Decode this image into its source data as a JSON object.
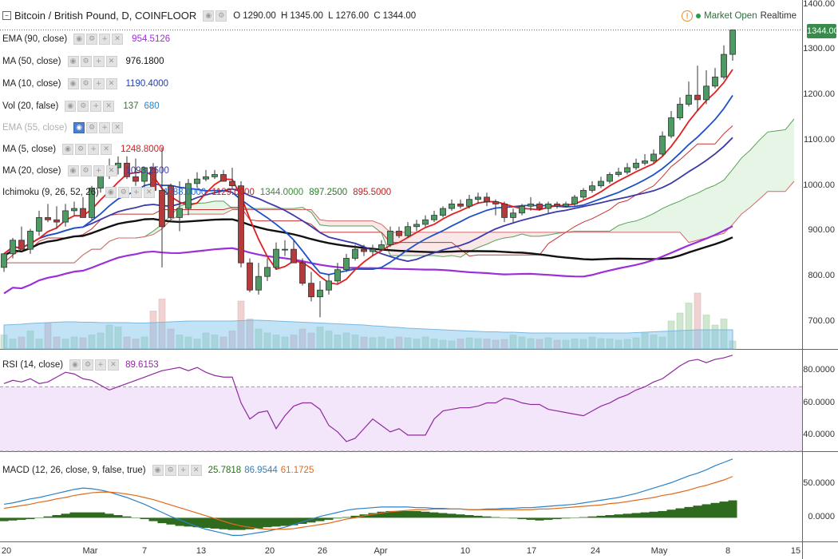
{
  "header": {
    "symbol_title": "Bitcoin / British Pound, D, COINFLOOR",
    "ohlc": {
      "o_label": "O",
      "o": "1290.00",
      "h_label": "H",
      "h": "1345.00",
      "l_label": "L",
      "l": "1276.00",
      "c_label": "C",
      "c": "1344.00"
    },
    "market_status": "Market Open",
    "feed": "Realtime",
    "last_price_tag": "1344.00"
  },
  "indicators": [
    {
      "label": "EMA (90, close)",
      "values": [
        "954.5126"
      ],
      "colors": [
        "#9b30d8"
      ],
      "faded": false
    },
    {
      "label": "MA (50, close)",
      "values": [
        "976.1800"
      ],
      "colors": [
        "#111111"
      ],
      "faded": false
    },
    {
      "label": "MA (10, close)",
      "values": [
        "1190.4000"
      ],
      "colors": [
        "#1e40b0"
      ],
      "faded": false
    },
    {
      "label": "Vol (20, false)",
      "values": [
        "137",
        "680"
      ],
      "colors": [
        "#3a6e3a",
        "#2a82c8"
      ],
      "faded": false
    },
    {
      "label": "EMA (55, close)",
      "values": [],
      "colors": [],
      "faded": true
    },
    {
      "label": "MA (5, close)",
      "values": [
        "1248.8000"
      ],
      "colors": [
        "#d42020"
      ],
      "faded": false
    },
    {
      "label": "MA (20, close)",
      "values": [
        "1093.2500"
      ],
      "colors": [
        "#3a3aa8"
      ],
      "faded": false
    },
    {
      "label": "Ichimoku (9, 26, 52, 26)",
      "values": [
        "1188.0000",
        "1129.0000",
        "1344.0000",
        "897.2500",
        "895.5000"
      ],
      "colors": [
        "#2a6ad8",
        "#c02020",
        "#3a8a3a",
        "#2a7a2a",
        "#c02020"
      ],
      "faded": false
    }
  ],
  "rsi_panel": {
    "label": "RSI (14, close)",
    "value": "89.6153",
    "value_color": "#8e2a9e",
    "ticks": [
      "80.0000",
      "60.0000",
      "40.0000"
    ]
  },
  "macd_panel": {
    "label": "MACD (12, 26, close, 9, false, true)",
    "values": [
      "25.7818",
      "86.9544",
      "61.1725"
    ],
    "value_colors": [
      "#2a6e1a",
      "#2a82c8",
      "#e06a1a"
    ],
    "ticks": [
      "50.0000",
      "0.0000"
    ]
  },
  "price_axis": [
    "1400.00",
    "1300.00",
    "1200.00",
    "1100.00",
    "1000.00",
    "900.00",
    "800.00",
    "700.00"
  ],
  "time_axis": [
    "20",
    "Mar",
    "7",
    "13",
    "20",
    "26",
    "Apr",
    "10",
    "17",
    "24",
    "May",
    "8",
    "15"
  ],
  "chart_data": {
    "type": "candlestick",
    "title": "Bitcoin / British Pound, D, COINFLOOR",
    "ylim": [
      640,
      1410
    ],
    "candles": {
      "open": [
        820,
        850,
        880,
        860,
        900,
        930,
        925,
        920,
        945,
        950,
        930,
        995,
        1025,
        1040,
        1050,
        1020,
        1010,
        1040,
        990,
        1000,
        930,
        950,
        1005,
        1015,
        1020,
        1025,
        1010,
        1000,
        830,
        770,
        800,
        820,
        860,
        860,
        830,
        785,
        755,
        770,
        790,
        815,
        840,
        860,
        855,
        860,
        870,
        900,
        890,
        910,
        915,
        925,
        935,
        950,
        960,
        955,
        970,
        975,
        965,
        960,
        930,
        940,
        955,
        960,
        950,
        960,
        955,
        960,
        975,
        990,
        1000,
        1010,
        1025,
        1030,
        1040,
        1050,
        1055,
        1070,
        1110,
        1150,
        1180,
        1200,
        1190,
        1220,
        1240,
        1290
      ],
      "high": [
        850,
        885,
        910,
        905,
        945,
        960,
        955,
        960,
        965,
        975,
        1000,
        1040,
        1060,
        1065,
        1065,
        1060,
        1030,
        1050,
        1085,
        1005,
        1010,
        1015,
        1030,
        1035,
        1035,
        1035,
        1040,
        1010,
        840,
        830,
        840,
        875,
        880,
        880,
        840,
        810,
        790,
        805,
        830,
        850,
        870,
        870,
        870,
        880,
        910,
        910,
        920,
        925,
        935,
        945,
        955,
        970,
        970,
        980,
        985,
        985,
        970,
        965,
        950,
        960,
        975,
        965,
        965,
        965,
        965,
        980,
        995,
        1010,
        1020,
        1030,
        1040,
        1050,
        1060,
        1070,
        1080,
        1120,
        1165,
        1195,
        1230,
        1265,
        1255,
        1260,
        1310,
        1345
      ],
      "low": [
        810,
        840,
        860,
        850,
        890,
        920,
        905,
        910,
        935,
        940,
        925,
        985,
        1015,
        1025,
        1015,
        1000,
        995,
        990,
        820,
        925,
        900,
        935,
        995,
        1010,
        1015,
        1010,
        995,
        820,
        765,
        760,
        790,
        815,
        845,
        830,
        780,
        745,
        710,
        760,
        785,
        810,
        835,
        845,
        845,
        855,
        865,
        885,
        885,
        900,
        910,
        920,
        930,
        945,
        950,
        950,
        960,
        955,
        935,
        920,
        920,
        935,
        945,
        945,
        940,
        950,
        955,
        955,
        970,
        985,
        995,
        1005,
        1020,
        1025,
        1035,
        1045,
        1050,
        1065,
        1105,
        1145,
        1175,
        1165,
        1180,
        1215,
        1235,
        1276
      ],
      "close": [
        850,
        880,
        860,
        900,
        930,
        925,
        920,
        945,
        950,
        930,
        995,
        1025,
        1040,
        1050,
        1020,
        1010,
        1040,
        990,
        910,
        930,
        950,
        1005,
        1015,
        1020,
        1025,
        1010,
        1000,
        830,
        770,
        800,
        820,
        860,
        860,
        830,
        785,
        755,
        770,
        790,
        815,
        840,
        860,
        855,
        860,
        870,
        900,
        890,
        910,
        915,
        925,
        935,
        950,
        960,
        955,
        970,
        975,
        965,
        960,
        930,
        940,
        955,
        960,
        950,
        960,
        955,
        960,
        975,
        990,
        1000,
        1010,
        1025,
        1030,
        1040,
        1050,
        1055,
        1070,
        1110,
        1150,
        1180,
        1200,
        1190,
        1220,
        1240,
        1290,
        1344
      ]
    },
    "volume": {
      "values": [
        35,
        25,
        30,
        45,
        25,
        65,
        30,
        25,
        30,
        28,
        35,
        40,
        60,
        55,
        30,
        25,
        30,
        95,
        125,
        50,
        35,
        30,
        25,
        40,
        35,
        30,
        45,
        120,
        75,
        50,
        40,
        35,
        30,
        35,
        50,
        40,
        55,
        45,
        35,
        40,
        35,
        30,
        28,
        30,
        25,
        30,
        28,
        25,
        30,
        25,
        22,
        20,
        25,
        28,
        26,
        25,
        22,
        24,
        35,
        30,
        26,
        24,
        28,
        22,
        22,
        25,
        24,
        30,
        26,
        25,
        22,
        24,
        28,
        40,
        35,
        30,
        70,
        90,
        115,
        140,
        85,
        60,
        75,
        20
      ],
      "ma20": [
        60,
        61,
        62,
        64,
        65,
        66,
        67,
        68,
        68,
        67,
        67,
        66,
        66,
        66,
        66,
        65,
        65,
        66,
        67,
        68,
        69,
        70,
        70,
        70,
        70,
        70,
        70,
        71,
        72,
        72,
        71,
        70,
        69,
        68,
        67,
        66,
        65,
        64,
        63,
        62,
        61,
        60,
        58,
        57,
        55,
        54,
        52,
        51,
        50,
        49,
        48,
        47,
        46,
        45,
        44,
        43,
        43,
        42,
        42,
        41,
        40,
        40,
        40,
        40,
        40,
        40,
        40,
        40,
        40,
        40,
        40,
        40,
        41,
        42,
        43,
        44,
        45,
        46,
        47,
        48,
        48,
        48,
        48,
        48
      ]
    },
    "overlays": {
      "MA 50": {
        "start": 770,
        "end": 976.18
      },
      "EMA 90": {
        "start": 740,
        "end": 954.51
      },
      "MA 10": {
        "end": 1190.4
      },
      "MA 5": {
        "end": 1248.8
      },
      "MA 20": {
        "end": 1093.25
      }
    },
    "ichimoku": {
      "tenkan": 1188.0,
      "kijun": 1129.0,
      "chikou": 1344.0,
      "span_a": 897.25,
      "span_b": 895.5
    },
    "rsi": {
      "ylim": [
        30,
        92
      ],
      "overbought": 70,
      "oversold": 30,
      "values": [
        72,
        74,
        73,
        75,
        72,
        73,
        76,
        79,
        78,
        75,
        74,
        71,
        68,
        70,
        72,
        74,
        76,
        78,
        80,
        81,
        82,
        80,
        82,
        79,
        77,
        76,
        76,
        60,
        50,
        54,
        55,
        44,
        52,
        58,
        60,
        60,
        56,
        46,
        42,
        36,
        38,
        44,
        50,
        46,
        42,
        44,
        40,
        40,
        40,
        50,
        55,
        56,
        57,
        57,
        58,
        60,
        60,
        63,
        62,
        60,
        59,
        59,
        56,
        55,
        54,
        53,
        52,
        55,
        58,
        60,
        63,
        65,
        68,
        70,
        73,
        75,
        79,
        83,
        86,
        87,
        85,
        87,
        88,
        89.6
      ]
    },
    "macd": {
      "ylim": [
        -35,
        95
      ],
      "hist": [
        -5,
        -4,
        -3,
        -2,
        0,
        2,
        4,
        6,
        8,
        8,
        8,
        8,
        6,
        4,
        2,
        0,
        -2,
        -5,
        -8,
        -10,
        -12,
        -13,
        -14,
        -15,
        -16,
        -17,
        -18,
        -18,
        -17,
        -16,
        -14,
        -13,
        -12,
        -11,
        -9,
        -7,
        -5,
        -3,
        -1,
        1,
        3,
        5,
        7,
        9,
        10,
        10,
        10,
        10,
        9,
        8,
        7,
        6,
        5,
        4,
        3,
        2,
        1,
        0,
        -1,
        -2,
        -3,
        -4,
        -3,
        -2,
        -1,
        0,
        1,
        2,
        3,
        4,
        5,
        6,
        7,
        8,
        9,
        10,
        12,
        14,
        16,
        18,
        20,
        22,
        24,
        25.8
      ],
      "macd_line": [
        20,
        22,
        25,
        28,
        30,
        33,
        36,
        39,
        42,
        44,
        43,
        41,
        38,
        34,
        30,
        25,
        20,
        14,
        8,
        2,
        -3,
        -8,
        -13,
        -17,
        -20,
        -23,
        -26,
        -26,
        -24,
        -22,
        -20,
        -17,
        -14,
        -10,
        -6,
        -2,
        2,
        5,
        8,
        11,
        13,
        14,
        15,
        16,
        16,
        16,
        16,
        15,
        15,
        14,
        14,
        13,
        13,
        12,
        12,
        13,
        13,
        14,
        14,
        15,
        15,
        16,
        17,
        18,
        19,
        20,
        22,
        24,
        26,
        28,
        30,
        33,
        36,
        40,
        44,
        48,
        52,
        57,
        62,
        66,
        71,
        77,
        82,
        86.95
      ],
      "signal_line": [
        14,
        16,
        18,
        20,
        23,
        25,
        28,
        30,
        33,
        35,
        37,
        38,
        38,
        37,
        35,
        33,
        30,
        27,
        23,
        19,
        15,
        11,
        7,
        3,
        -1,
        -5,
        -9,
        -12,
        -14,
        -16,
        -17,
        -17,
        -17,
        -16,
        -14,
        -12,
        -10,
        -8,
        -5,
        -2,
        0,
        3,
        5,
        7,
        9,
        10,
        11,
        12,
        12,
        13,
        13,
        13,
        13,
        12,
        12,
        12,
        12,
        12,
        12,
        12,
        12,
        13,
        13,
        14,
        15,
        16,
        17,
        18,
        19,
        21,
        22,
        24,
        26,
        28,
        30,
        33,
        35,
        38,
        41,
        45,
        48,
        52,
        56,
        61.17
      ]
    }
  }
}
